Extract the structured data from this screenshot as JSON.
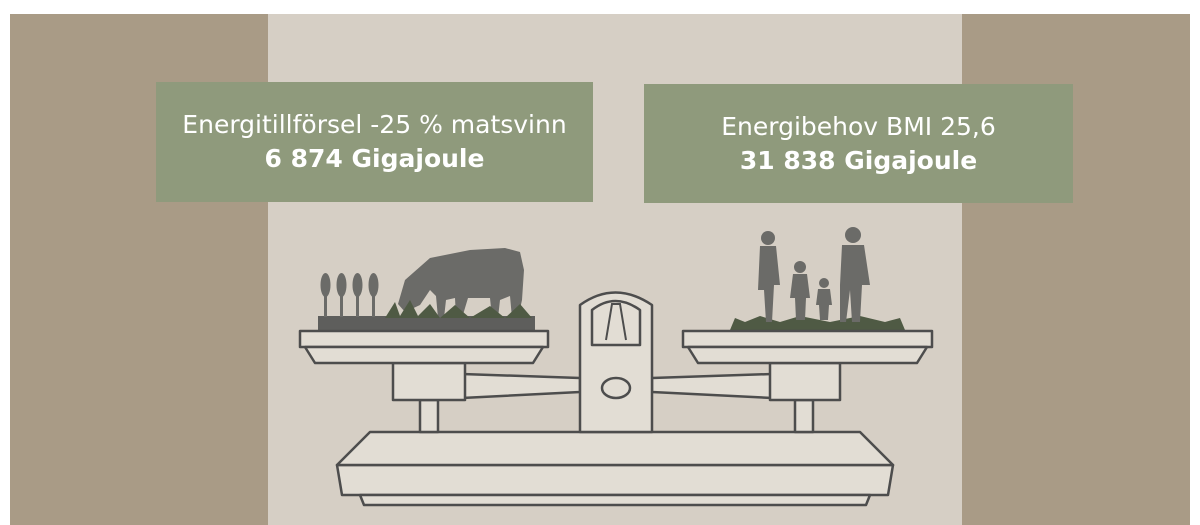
{
  "left_box": {
    "title": "Energitillförsel -25 % matsvinn",
    "value": "6 874 Gigajoule"
  },
  "right_box": {
    "title": "Energibehov BMI 25,6",
    "value": "31 838 Gigajoule"
  }
}
